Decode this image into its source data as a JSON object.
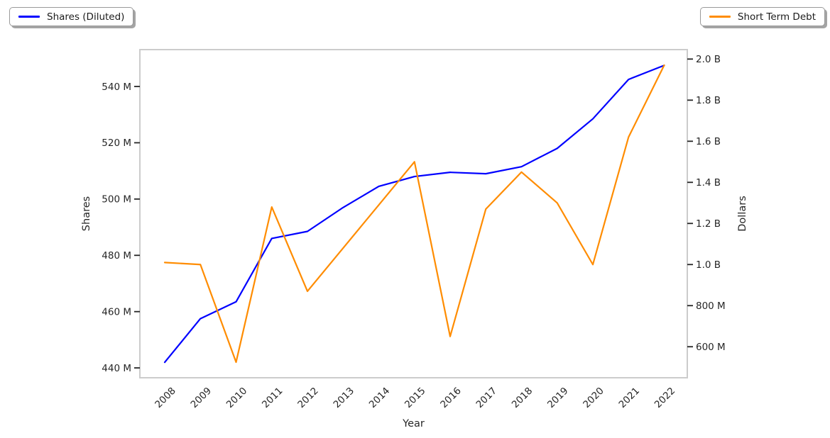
{
  "legends": {
    "left": {
      "label": "Shares (Diluted)",
      "color": "#0000ff"
    },
    "right": {
      "label": "Short Term Debt",
      "color": "#ff8c00"
    }
  },
  "chart_data": {
    "type": "line",
    "title": "",
    "xlabel": "Year",
    "x": [
      2008,
      2009,
      2010,
      2011,
      2012,
      2013,
      2014,
      2015,
      2016,
      2017,
      2018,
      2019,
      2020,
      2021,
      2022
    ],
    "series": [
      {
        "name": "Shares (Diluted)",
        "yaxis": "left",
        "color": "#0000ff",
        "units": "shares (millions)",
        "values_millions": [
          442,
          457.5,
          463.5,
          486,
          488.5,
          497,
          504.5,
          508,
          509.5,
          509,
          511.5,
          518,
          528.5,
          542.5,
          547.5
        ]
      },
      {
        "name": "Short Term Debt",
        "yaxis": "right",
        "color": "#ff8c00",
        "units": "dollars (billions)",
        "values_billions": [
          1.01,
          1.0,
          0.525,
          1.28,
          0.87,
          1.08,
          1.29,
          1.5,
          0.65,
          1.27,
          1.45,
          1.3,
          1.0,
          1.62,
          1.97
        ]
      }
    ],
    "left_axis": {
      "label": "Shares",
      "tick_labels": [
        "440 M",
        "460 M",
        "480 M",
        "500 M",
        "520 M",
        "540 M"
      ],
      "tick_values_millions": [
        440,
        460,
        480,
        500,
        520,
        540
      ],
      "range_millions": [
        436.5,
        553.1
      ]
    },
    "right_axis": {
      "label": "Dollars",
      "tick_labels": [
        "600 M",
        "800 M",
        "1.0 B",
        "1.2 B",
        "1.4 B",
        "1.6 B",
        "1.8 B",
        "2.0 B"
      ],
      "tick_values_billions": [
        0.6,
        0.8,
        1.0,
        1.2,
        1.4,
        1.6,
        1.8,
        2.0
      ],
      "range_billions": [
        0.449,
        2.046
      ]
    },
    "x_tick_rotation_deg": 45,
    "grid": false,
    "legend_position": "outside top-left (Shares) and outside top-right (Short Term Debt)"
  }
}
